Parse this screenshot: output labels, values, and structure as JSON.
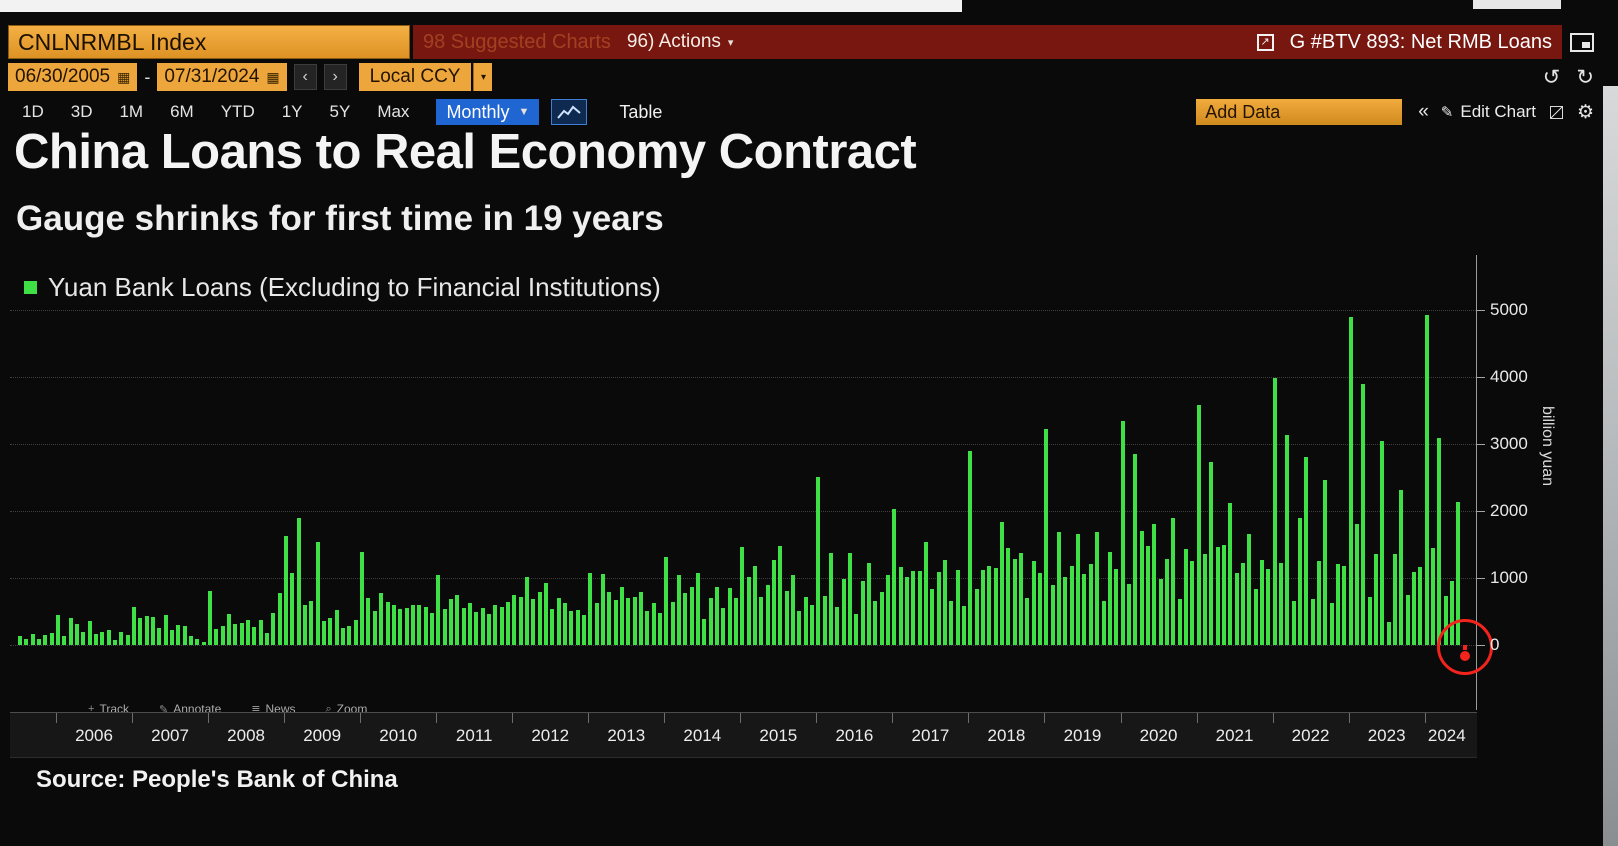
{
  "header": {
    "ticker": "CNLNRMBL Index",
    "suggested_charts": "98 Suggested Charts",
    "actions": "96) Actions",
    "chart_ref": "G #BTV 893: Net RMB Loans"
  },
  "toolbar": {
    "date_from": "06/30/2005",
    "date_separator": "-",
    "date_to": "07/31/2024",
    "currency": "Local CCY",
    "ranges": [
      "1D",
      "3D",
      "1M",
      "6M",
      "YTD",
      "1Y",
      "5Y",
      "Max"
    ],
    "period": "Monthly",
    "table": "Table",
    "add_data": "Add Data",
    "edit_chart": "Edit Chart"
  },
  "plot_toolbar": {
    "track": "Track",
    "annotate": "Annotate",
    "news": "News",
    "zoom": "Zoom"
  },
  "source": "Source: People's Bank of China",
  "colors": {
    "amber": "#eda63b",
    "header_red": "#771710",
    "bar_green": "#3fe046",
    "period_blue": "#2066d2",
    "annotation_red": "#f3241c",
    "grid": "#3e3e3e"
  },
  "chart_data": {
    "type": "bar",
    "title": "China Loans to Real Economy Contract",
    "subtitle": "Gauge shrinks for first time in 19 years",
    "legend": "Yuan Bank Loans (Excluding to Financial Institutions)",
    "ylabel": "billion yuan",
    "frequency": "monthly",
    "x_start": "2005-07",
    "x_end": "2024-07",
    "y_ticks": [
      0,
      1000,
      2000,
      3000,
      4000,
      5000
    ],
    "ylim": [
      -900,
      5800
    ],
    "grid": "dotted-horizontal",
    "legend_position": "top-left",
    "year_labels": [
      2006,
      2007,
      2008,
      2009,
      2010,
      2011,
      2012,
      2013,
      2014,
      2015,
      2016,
      2017,
      2018,
      2019,
      2020,
      2021,
      2022,
      2023,
      2024
    ],
    "values": [
      140,
      90,
      160,
      90,
      150,
      180,
      450,
      140,
      400,
      310,
      200,
      360,
      170,
      190,
      220,
      80,
      190,
      150,
      570,
      410,
      440,
      420,
      250,
      450,
      230,
      300,
      280,
      130,
      90,
      50,
      800,
      240,
      280,
      460,
      320,
      330,
      380,
      270,
      370,
      180,
      480,
      770,
      1620,
      1070,
      1890,
      590,
      660,
      1530,
      360,
      410,
      520,
      250,
      290,
      380,
      1390,
      700,
      510,
      770,
      640,
      600,
      530,
      550,
      600,
      590,
      560,
      480,
      1040,
      540,
      680,
      740,
      550,
      630,
      490,
      550,
      470,
      590,
      560,
      640,
      740,
      710,
      1010,
      680,
      790,
      920,
      540,
      700,
      620,
      510,
      520,
      450,
      1070,
      620,
      1060,
      790,
      670,
      860,
      700,
      710,
      790,
      510,
      620,
      480,
      1320,
      640,
      1050,
      770,
      870,
      1080,
      390,
      700,
      860,
      550,
      850,
      700,
      1470,
      1020,
      1180,
      710,
      900,
      1270,
      1480,
      810,
      1050,
      510,
      710,
      600,
      2510,
      730,
      1370,
      560,
      990,
      1380,
      460,
      950,
      1220,
      650,
      790,
      1040,
      2030,
      1170,
      1020,
      1100,
      1110,
      1540,
      830,
      1090,
      1270,
      660,
      1120,
      580,
      2900,
      840,
      1120,
      1180,
      1150,
      1840,
      1450,
      1280,
      1380,
      700,
      1250,
      1080,
      3230,
      890,
      1690,
      1020,
      1180,
      1660,
      1060,
      1210,
      1690,
      660,
      1390,
      1140,
      3340,
      910,
      2850,
      1700,
      1480,
      1810,
      990,
      1280,
      1900,
      690,
      1430,
      1260,
      3580,
      1360,
      2730,
      1470,
      1500,
      2120,
      1080,
      1220,
      1660,
      830,
      1270,
      1130,
      3980,
      1230,
      3130,
      650,
      1890,
      2810,
      680,
      1250,
      2470,
      620,
      1210,
      1180,
      4900,
      1810,
      3890,
      720,
      1360,
      3050,
      350,
      1360,
      2310,
      740,
      1090,
      1170,
      4920,
      1450,
      3090,
      730,
      950,
      2130,
      -77
    ],
    "annotation": {
      "shape": "circle",
      "month": "2024-07",
      "value": -77,
      "color": "#f3241c"
    }
  }
}
